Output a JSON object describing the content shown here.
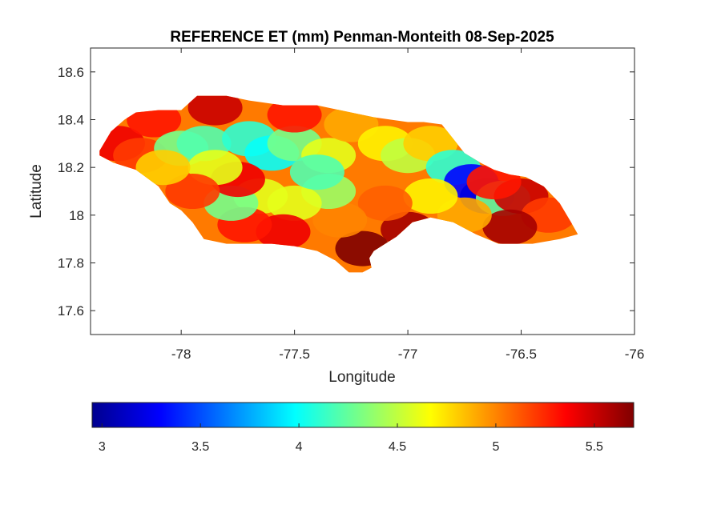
{
  "chart_data": {
    "type": "heatmap",
    "title": "REFERENCE ET (mm) Penman-Monteith 08-Sep-2025",
    "xlabel": "Longitude",
    "ylabel": "Latitude",
    "xlim": [
      -78.4,
      -76
    ],
    "ylim": [
      17.5,
      18.7
    ],
    "x_ticks": [
      -78,
      -77.5,
      -77,
      -76.5,
      -76
    ],
    "x_tick_labels": [
      "-78",
      "-77.5",
      "-77",
      "-76.5",
      "-76"
    ],
    "y_ticks": [
      17.6,
      17.8,
      18,
      18.2,
      18.4,
      18.6
    ],
    "y_tick_labels": [
      "17.6",
      "17.8",
      "18",
      "18.2",
      "18.4",
      "18.6"
    ],
    "colormap": "jet",
    "colorbar": {
      "orientation": "horizontal",
      "location": "below",
      "range": [
        2.95,
        5.7
      ],
      "ticks": [
        3,
        3.5,
        4,
        4.5,
        5,
        5.5
      ],
      "tick_labels": [
        "3",
        "3.5",
        "4",
        "4.5",
        "5",
        "5.5"
      ]
    },
    "grid": false,
    "region_outline": [
      [
        -78.36,
        18.27
      ],
      [
        -78.31,
        18.35
      ],
      [
        -78.25,
        18.4
      ],
      [
        -78.2,
        18.43
      ],
      [
        -78.1,
        18.44
      ],
      [
        -78.0,
        18.44
      ],
      [
        -77.93,
        18.5
      ],
      [
        -77.8,
        18.5
      ],
      [
        -77.7,
        18.48
      ],
      [
        -77.55,
        18.46
      ],
      [
        -77.4,
        18.46
      ],
      [
        -77.3,
        18.44
      ],
      [
        -77.15,
        18.41
      ],
      [
        -77.0,
        18.39
      ],
      [
        -76.93,
        18.39
      ],
      [
        -76.85,
        18.38
      ],
      [
        -76.8,
        18.32
      ],
      [
        -76.75,
        18.26
      ],
      [
        -76.68,
        18.22
      ],
      [
        -76.62,
        18.19
      ],
      [
        -76.55,
        18.17
      ],
      [
        -76.48,
        18.16
      ],
      [
        -76.4,
        18.12
      ],
      [
        -76.33,
        18.05
      ],
      [
        -76.28,
        17.97
      ],
      [
        -76.25,
        17.92
      ],
      [
        -76.33,
        17.9
      ],
      [
        -76.45,
        17.88
      ],
      [
        -76.6,
        17.88
      ],
      [
        -76.7,
        17.92
      ],
      [
        -76.8,
        17.97
      ],
      [
        -76.9,
        17.99
      ],
      [
        -76.98,
        17.97
      ],
      [
        -77.05,
        17.91
      ],
      [
        -77.1,
        17.88
      ],
      [
        -77.15,
        17.85
      ],
      [
        -77.17,
        17.82
      ],
      [
        -77.16,
        17.78
      ],
      [
        -77.2,
        17.76
      ],
      [
        -77.26,
        17.76
      ],
      [
        -77.32,
        17.81
      ],
      [
        -77.4,
        17.85
      ],
      [
        -77.5,
        17.87
      ],
      [
        -77.6,
        17.88
      ],
      [
        -77.7,
        17.88
      ],
      [
        -77.8,
        17.88
      ],
      [
        -77.9,
        17.9
      ],
      [
        -77.95,
        17.97
      ],
      [
        -78.0,
        18.02
      ],
      [
        -78.05,
        18.05
      ],
      [
        -78.1,
        18.12
      ],
      [
        -78.2,
        18.19
      ],
      [
        -78.3,
        18.22
      ],
      [
        -78.36,
        18.25
      ]
    ],
    "values": [
      {
        "lon": -78.28,
        "lat": 18.3,
        "et": 5.4
      },
      {
        "lon": -78.18,
        "lat": 18.25,
        "et": 5.2
      },
      {
        "lon": -78.12,
        "lat": 18.4,
        "et": 5.3
      },
      {
        "lon": -78.0,
        "lat": 18.28,
        "et": 4.3
      },
      {
        "lon": -77.9,
        "lat": 18.3,
        "et": 4.2
      },
      {
        "lon": -77.85,
        "lat": 18.45,
        "et": 5.5
      },
      {
        "lon": -77.7,
        "lat": 18.32,
        "et": 4.1
      },
      {
        "lon": -77.6,
        "lat": 18.26,
        "et": 4.0
      },
      {
        "lon": -77.5,
        "lat": 18.3,
        "et": 4.3
      },
      {
        "lon": -77.5,
        "lat": 18.42,
        "et": 5.3
      },
      {
        "lon": -77.35,
        "lat": 18.25,
        "et": 4.6
      },
      {
        "lon": -77.25,
        "lat": 18.38,
        "et": 4.9
      },
      {
        "lon": -77.1,
        "lat": 18.3,
        "et": 4.7
      },
      {
        "lon": -77.0,
        "lat": 18.25,
        "et": 4.5
      },
      {
        "lon": -76.9,
        "lat": 18.3,
        "et": 4.8
      },
      {
        "lon": -76.8,
        "lat": 18.2,
        "et": 4.1
      },
      {
        "lon": -76.72,
        "lat": 18.14,
        "et": 3.3
      },
      {
        "lon": -76.65,
        "lat": 18.08,
        "et": 3.2
      },
      {
        "lon": -76.58,
        "lat": 18.07,
        "et": 4.3
      },
      {
        "lon": -76.5,
        "lat": 18.08,
        "et": 5.5
      },
      {
        "lon": -76.38,
        "lat": 18.0,
        "et": 5.2
      },
      {
        "lon": -76.55,
        "lat": 17.95,
        "et": 5.6
      },
      {
        "lon": -76.75,
        "lat": 18.0,
        "et": 4.9
      },
      {
        "lon": -76.9,
        "lat": 18.08,
        "et": 4.7
      },
      {
        "lon": -77.0,
        "lat": 17.94,
        "et": 5.6
      },
      {
        "lon": -77.1,
        "lat": 18.05,
        "et": 5.1
      },
      {
        "lon": -77.2,
        "lat": 17.86,
        "et": 5.7
      },
      {
        "lon": -77.3,
        "lat": 17.98,
        "et": 5.0
      },
      {
        "lon": -77.35,
        "lat": 18.1,
        "et": 4.4
      },
      {
        "lon": -77.5,
        "lat": 18.05,
        "et": 4.6
      },
      {
        "lon": -77.55,
        "lat": 17.93,
        "et": 5.4
      },
      {
        "lon": -77.65,
        "lat": 18.08,
        "et": 4.6
      },
      {
        "lon": -77.72,
        "lat": 17.96,
        "et": 5.3
      },
      {
        "lon": -77.78,
        "lat": 18.05,
        "et": 4.3
      },
      {
        "lon": -77.75,
        "lat": 18.15,
        "et": 5.4
      },
      {
        "lon": -77.85,
        "lat": 18.2,
        "et": 4.6
      },
      {
        "lon": -77.95,
        "lat": 18.1,
        "et": 5.2
      },
      {
        "lon": -78.08,
        "lat": 18.2,
        "et": 4.8
      },
      {
        "lon": -77.4,
        "lat": 18.18,
        "et": 4.2
      },
      {
        "lon": -76.62,
        "lat": 18.14,
        "et": 5.3
      }
    ]
  }
}
